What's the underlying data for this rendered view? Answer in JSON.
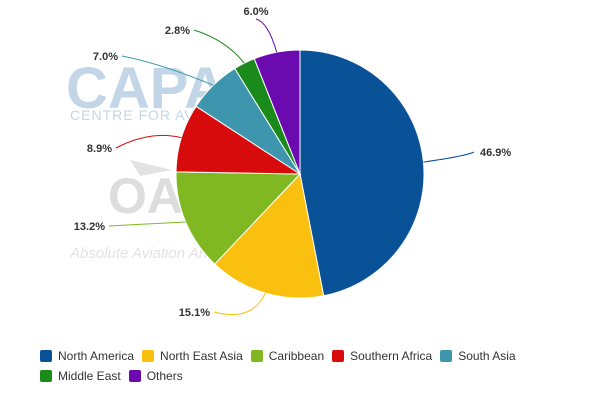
{
  "watermark": {
    "brand": "CAPA",
    "brand_sub": "CENTRE FOR AVIATION",
    "mark": "OA",
    "tagline": "Absolute Aviation Analysis"
  },
  "chart_data": {
    "type": "pie",
    "start_angle_deg": 0,
    "direction": "clockwise",
    "slices": [
      {
        "name": "North America",
        "value": 46.9,
        "label": "46.9%",
        "color": "#0a5297"
      },
      {
        "name": "North East Asia",
        "value": 15.1,
        "label": "15.1%",
        "color": "#f9c00f"
      },
      {
        "name": "Caribbean",
        "value": 13.2,
        "label": "13.2%",
        "color": "#80b821"
      },
      {
        "name": "Southern Africa",
        "value": 8.9,
        "label": "8.9%",
        "color": "#d70b0b"
      },
      {
        "name": "South Asia",
        "value": 7.0,
        "label": "7.0%",
        "color": "#3d96ae"
      },
      {
        "name": "Middle East",
        "value": 2.8,
        "label": "2.8%",
        "color": "#1a8a1a"
      },
      {
        "name": "Others",
        "value": 6.0,
        "label": "6.0%",
        "color": "#6b0aaf"
      }
    ],
    "legend_position": "bottom"
  }
}
